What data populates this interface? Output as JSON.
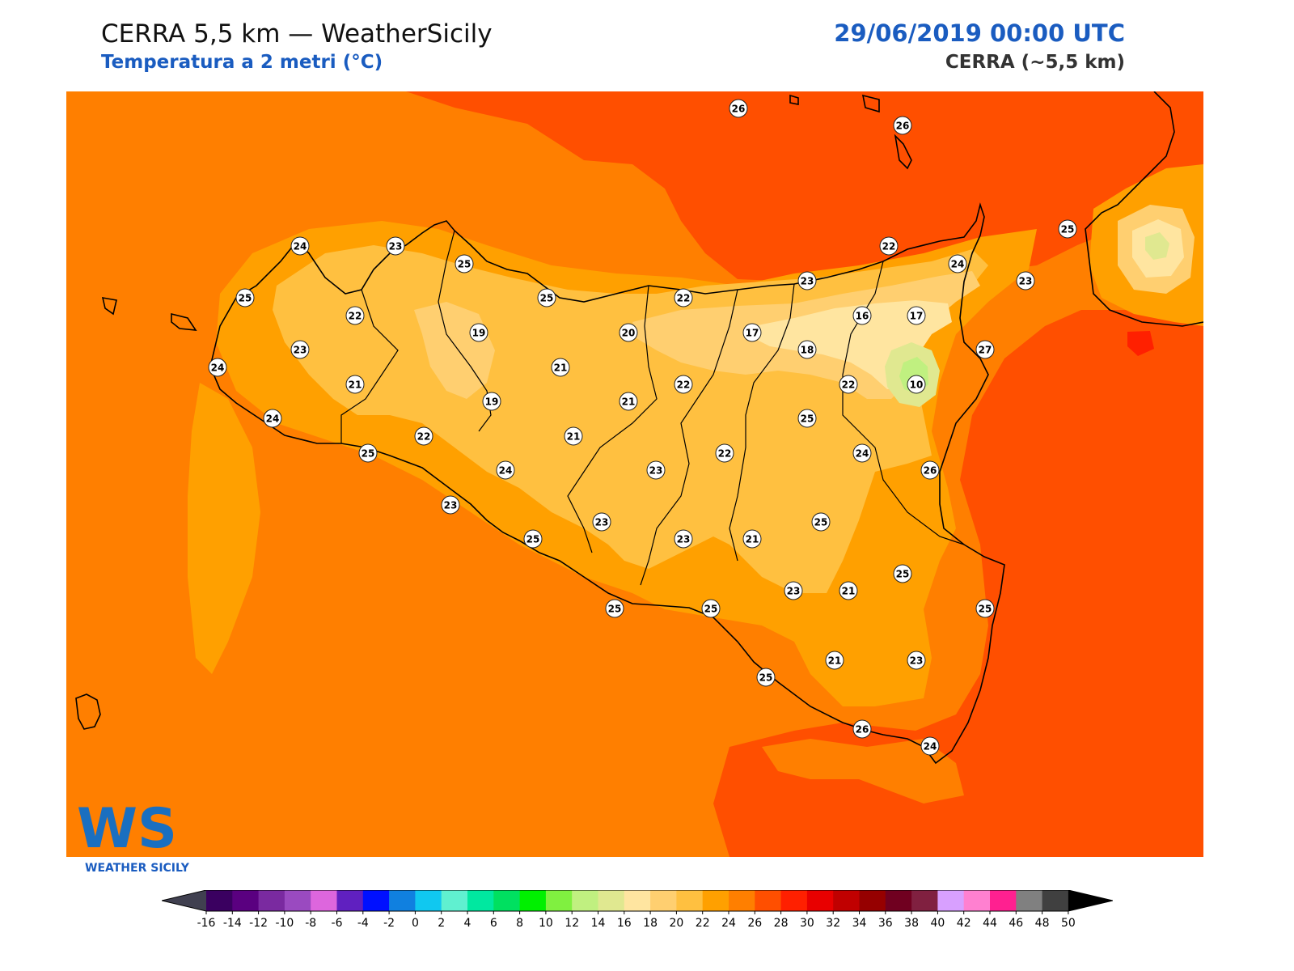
{
  "header": {
    "title": "CERRA 5,5 km — WeatherSicily",
    "subtitle": "Temperatura a 2 metri (°C)",
    "datetime": "29/06/2019 00:00 UTC",
    "model": "CERRA (~5,5 km)"
  },
  "logo": {
    "letters": "WS",
    "name": "WEATHER SICILY"
  },
  "colors": {
    "sea_background": "#ff7f00",
    "warm_sea": "#ff4f00",
    "inland_22": "#ffc040",
    "inland_24": "#ffa000",
    "inland_20": "#ffcf70",
    "inland_18": "#ffe5a0",
    "inland_16": "#e0e890",
    "inland_14": "#c0f080",
    "hot_30": "#ff2000",
    "coast_line": "#000000",
    "title_blue": "#1a5cc0"
  },
  "stations": [
    {
      "id": "stromboli",
      "value": "26"
    },
    {
      "id": "lipari",
      "value": "26"
    },
    {
      "id": "capo-san-vito",
      "value": "24"
    },
    {
      "id": "palermo-w",
      "value": "23"
    },
    {
      "id": "palermo",
      "value": "25"
    },
    {
      "id": "trapani",
      "value": "25"
    },
    {
      "id": "erice",
      "value": "22"
    },
    {
      "id": "termini",
      "value": "25"
    },
    {
      "id": "corleone",
      "value": "19"
    },
    {
      "id": "cefalu",
      "value": "22"
    },
    {
      "id": "madonie",
      "value": "20"
    },
    {
      "id": "nebrodi",
      "value": "23"
    },
    {
      "id": "capo-orlando",
      "value": "22"
    },
    {
      "id": "milazzo",
      "value": "24"
    },
    {
      "id": "messina",
      "value": "25"
    },
    {
      "id": "taormina-n",
      "value": "23"
    },
    {
      "id": "alcamo",
      "value": "23"
    },
    {
      "id": "marsala",
      "value": "24"
    },
    {
      "id": "salemi",
      "value": "21"
    },
    {
      "id": "nicosia",
      "value": "21"
    },
    {
      "id": "cesaro",
      "value": "17"
    },
    {
      "id": "randazzo",
      "value": "16"
    },
    {
      "id": "linguaglossa",
      "value": "17"
    },
    {
      "id": "bronte",
      "value": "18"
    },
    {
      "id": "giarre",
      "value": "27"
    },
    {
      "id": "mazara",
      "value": "24"
    },
    {
      "id": "partanna",
      "value": "19"
    },
    {
      "id": "enna",
      "value": "22"
    },
    {
      "id": "etna",
      "value": "10"
    },
    {
      "id": "adrano",
      "value": "22"
    },
    {
      "id": "belice",
      "value": "22"
    },
    {
      "id": "caltanissetta",
      "value": "21"
    },
    {
      "id": "sciacca-w",
      "value": "25"
    },
    {
      "id": "mussomeli",
      "value": "21"
    },
    {
      "id": "paterno",
      "value": "24"
    },
    {
      "id": "catania",
      "value": "26"
    },
    {
      "id": "bivona",
      "value": "24"
    },
    {
      "id": "piazza",
      "value": "23"
    },
    {
      "id": "aidone",
      "value": "22"
    },
    {
      "id": "sciacca",
      "value": "25"
    },
    {
      "id": "caltagirone-n",
      "value": "25"
    },
    {
      "id": "canicatti",
      "value": "23"
    },
    {
      "id": "agrigento",
      "value": "25"
    },
    {
      "id": "mazzarino",
      "value": "23"
    },
    {
      "id": "caltagirone",
      "value": "21"
    },
    {
      "id": "vizzini",
      "value": "23"
    },
    {
      "id": "niscemi",
      "value": "23"
    },
    {
      "id": "palazzolo",
      "value": "21"
    },
    {
      "id": "licata",
      "value": "25"
    },
    {
      "id": "gela",
      "value": "25"
    },
    {
      "id": "siracusa",
      "value": "25"
    },
    {
      "id": "vittoria",
      "value": "25"
    },
    {
      "id": "ragusa",
      "value": "21"
    },
    {
      "id": "noto",
      "value": "23"
    },
    {
      "id": "pozzallo",
      "value": "25"
    },
    {
      "id": "pachino",
      "value": "26"
    },
    {
      "id": "pantelleria",
      "value": "24"
    }
  ],
  "colorbar": {
    "ticks": [
      "-16",
      "-14",
      "-12",
      "-10",
      "-8",
      "-6",
      "-4",
      "-2",
      "0",
      "2",
      "4",
      "6",
      "8",
      "10",
      "12",
      "14",
      "16",
      "18",
      "20",
      "22",
      "24",
      "26",
      "28",
      "30",
      "32",
      "34",
      "36",
      "38",
      "40",
      "42",
      "44",
      "46",
      "48",
      "50"
    ],
    "colors": [
      "#3a0060",
      "#5a0080",
      "#7a2aa0",
      "#9a4ac0",
      "#dd66dd",
      "#6020c0",
      "#0010ff",
      "#1080e0",
      "#10c8f0",
      "#60f0d0",
      "#00e8a0",
      "#00e060",
      "#00f000",
      "#80f040",
      "#c0f080",
      "#e0e890",
      "#ffe5a0",
      "#ffcf70",
      "#ffc040",
      "#ffa000",
      "#ff7f00",
      "#ff4f00",
      "#ff2000",
      "#e80000",
      "#c00000",
      "#960000",
      "#700020",
      "#802040",
      "#d8a0ff",
      "#ff80d0",
      "#ff2090",
      "#808080",
      "#404040"
    ],
    "under_color": "#404050",
    "over_color": "#000000"
  }
}
